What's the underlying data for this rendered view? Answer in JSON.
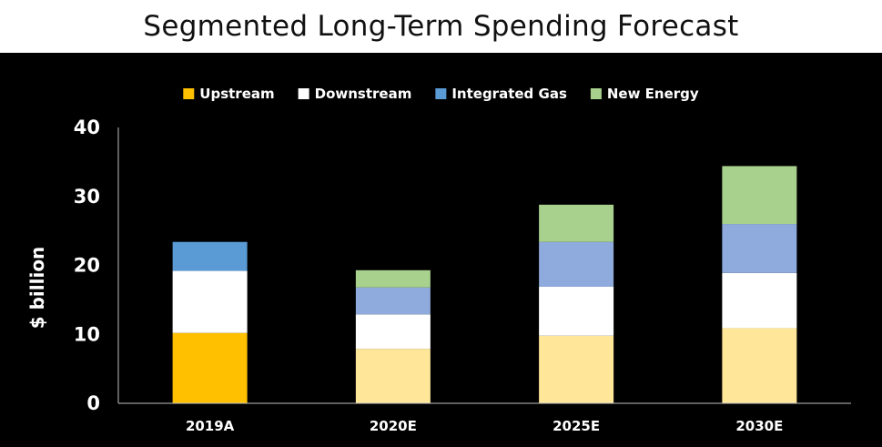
{
  "chart_data": {
    "type": "bar",
    "stacked": true,
    "title": "Segmented Long-Term Spending Forecast",
    "xlabel": "",
    "ylabel": "$ billion",
    "ylim": [
      0,
      40
    ],
    "yticks": [
      0,
      10,
      20,
      30,
      40
    ],
    "legend_position": "top",
    "categories": [
      "2019A",
      "2020E",
      "2025E",
      "2030E"
    ],
    "series": [
      {
        "name": "Upstream",
        "color": "#FFC000",
        "values": [
          10.2,
          7.9,
          9.8,
          10.9
        ]
      },
      {
        "name": "Downstream",
        "color": "#FFFFFF",
        "values": [
          9.0,
          5.0,
          7.1,
          8.0
        ]
      },
      {
        "name": "Integrated Gas",
        "color": "#5B9BD5",
        "values": [
          4.2,
          3.9,
          6.5,
          7.1
        ]
      },
      {
        "name": "New Energy",
        "color": "#A9D18E",
        "values": [
          0,
          2.5,
          5.4,
          8.4
        ]
      }
    ],
    "projected_colors": {
      "Upstream": "#FFE699",
      "Downstream": "#FFFFFF",
      "Integrated Gas": "#8FAADC",
      "New Energy": "#A9D18E"
    },
    "actual_categories": [
      "2019A"
    ]
  }
}
